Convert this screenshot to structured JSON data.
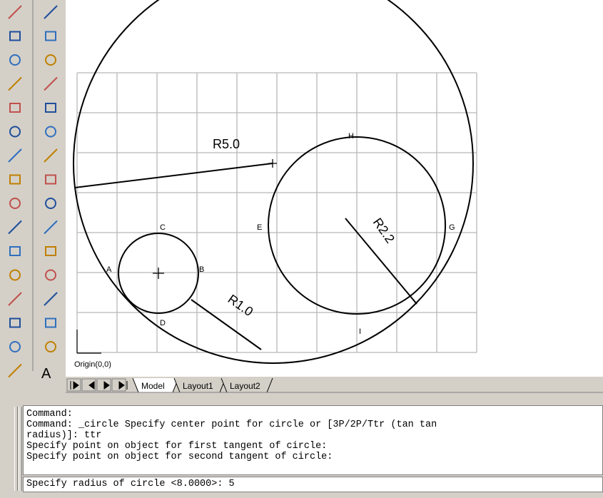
{
  "toolbar": {
    "text_tool": "A"
  },
  "drawing": {
    "dimensions": [
      "R5.0",
      "R1.0",
      "R2.2"
    ],
    "points": {
      "A": "A",
      "B": "B",
      "C": "C",
      "D": "D",
      "E": "E",
      "G": "G",
      "H": "H",
      "I": "I"
    },
    "origin_label": "Origin(0,0)"
  },
  "tabs": [
    "Model",
    "Layout1",
    "Layout2"
  ],
  "command_lines": [
    "Command:",
    "Command: _circle Specify center point for circle or [3P/2P/Ttr (tan tan",
    "radius)]: ttr",
    "Specify point on object for first tangent of circle:",
    "Specify point on object for second tangent of circle:"
  ],
  "command_input": "Specify radius of circle <8.0000>: 5"
}
